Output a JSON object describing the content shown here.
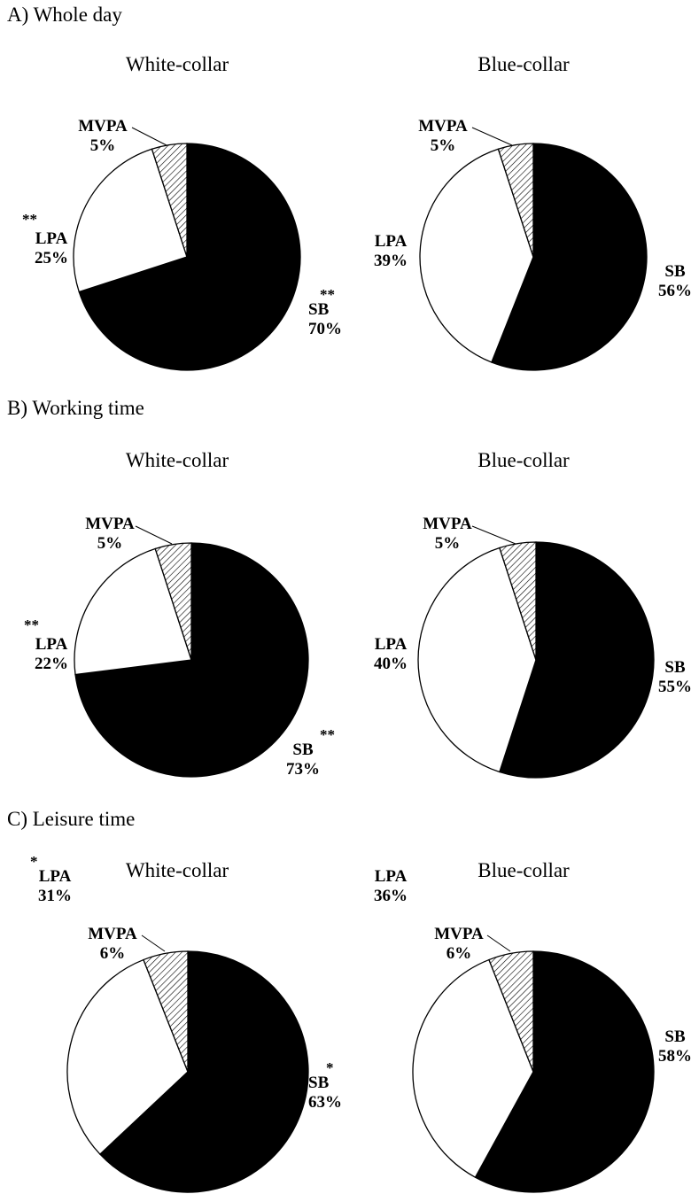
{
  "colors": {
    "SB": "#000000",
    "LPA": "#ffffff",
    "MVPA": "hatched",
    "outline": "#000000"
  },
  "panels": [
    {
      "title": "A) Whole day"
    },
    {
      "title": "B) Working time"
    },
    {
      "title": "C) Leisure time"
    }
  ],
  "chart_data": [
    {
      "type": "pie",
      "panel": "A) Whole day",
      "title": "White-collar",
      "slices": [
        {
          "label": "SB",
          "pct": "70%",
          "value": 70,
          "sig": "**"
        },
        {
          "label": "LPA",
          "pct": "25%",
          "value": 25,
          "sig": "**"
        },
        {
          "label": "MVPA",
          "pct": "5%",
          "value": 5,
          "sig": ""
        }
      ]
    },
    {
      "type": "pie",
      "panel": "A) Whole day",
      "title": "Blue-collar",
      "slices": [
        {
          "label": "SB",
          "pct": "56%",
          "value": 56,
          "sig": ""
        },
        {
          "label": "LPA",
          "pct": "39%",
          "value": 39,
          "sig": ""
        },
        {
          "label": "MVPA",
          "pct": "5%",
          "value": 5,
          "sig": ""
        }
      ]
    },
    {
      "type": "pie",
      "panel": "B) Working time",
      "title": "White-collar",
      "slices": [
        {
          "label": "SB",
          "pct": "73%",
          "value": 73,
          "sig": "**"
        },
        {
          "label": "LPA",
          "pct": "22%",
          "value": 22,
          "sig": "**"
        },
        {
          "label": "MVPA",
          "pct": "5%",
          "value": 5,
          "sig": ""
        }
      ]
    },
    {
      "type": "pie",
      "panel": "B) Working time",
      "title": "Blue-collar",
      "slices": [
        {
          "label": "SB",
          "pct": "55%",
          "value": 55,
          "sig": ""
        },
        {
          "label": "LPA",
          "pct": "40%",
          "value": 40,
          "sig": ""
        },
        {
          "label": "MVPA",
          "pct": "5%",
          "value": 5,
          "sig": ""
        }
      ]
    },
    {
      "type": "pie",
      "panel": "C) Leisure time",
      "title": "White-collar",
      "slices": [
        {
          "label": "SB",
          "pct": "63%",
          "value": 63,
          "sig": "*"
        },
        {
          "label": "LPA",
          "pct": "31%",
          "value": 31,
          "sig": "*"
        },
        {
          "label": "MVPA",
          "pct": "6%",
          "value": 6,
          "sig": ""
        }
      ]
    },
    {
      "type": "pie",
      "panel": "C) Leisure time",
      "title": "Blue-collar",
      "slices": [
        {
          "label": "SB",
          "pct": "58%",
          "value": 58,
          "sig": ""
        },
        {
          "label": "LPA",
          "pct": "36%",
          "value": 36,
          "sig": ""
        },
        {
          "label": "MVPA",
          "pct": "6%",
          "value": 6,
          "sig": ""
        }
      ]
    }
  ]
}
